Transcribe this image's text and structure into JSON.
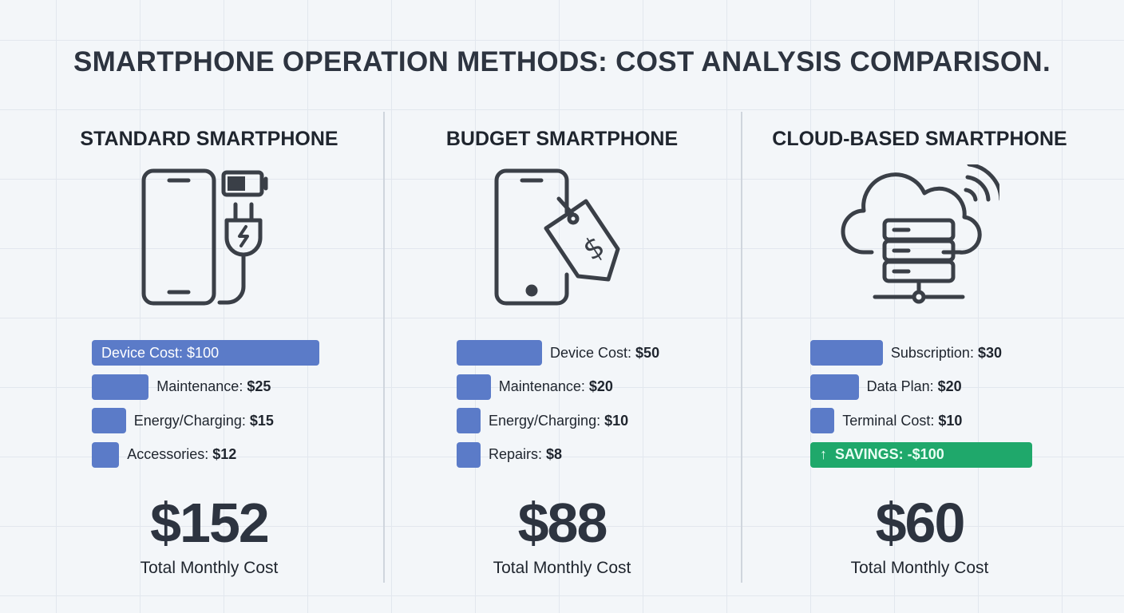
{
  "title": "SMARTPHONE OPERATION METHODS: COST ANALYSIS COMPARISON.",
  "colors": {
    "bar": "#5b7bc8",
    "savings": "#1fa86b",
    "text": "#2d3440"
  },
  "chart_data": {
    "type": "bar",
    "title": "SMARTPHONE OPERATION METHODS: COST ANALYSIS COMPARISON.",
    "panels": [
      {
        "name": "STANDARD SMARTPHONE",
        "icon": "phone-charger-battery-icon",
        "items": [
          {
            "label": "Device Cost:",
            "value_text": "$100",
            "value": 100
          },
          {
            "label": "Maintenance:",
            "value_text": "$25",
            "value": 25
          },
          {
            "label": "Energy/Charging:",
            "value_text": "$15",
            "value": 15
          },
          {
            "label": "Accessories:",
            "value_text": "$12",
            "value": 12
          }
        ],
        "total": "$152",
        "total_label": "Total Monthly Cost"
      },
      {
        "name": "BUDGET SMARTPHONE",
        "icon": "phone-price-tag-icon",
        "items": [
          {
            "label": "Device Cost:",
            "value_text": "$50",
            "value": 50
          },
          {
            "label": "Maintenance:",
            "value_text": "$20",
            "value": 20
          },
          {
            "label": "Energy/Charging:",
            "value_text": "$10",
            "value": 10
          },
          {
            "label": "Repairs:",
            "value_text": "$8",
            "value": 8
          }
        ],
        "total": "$88",
        "total_label": "Total Monthly Cost"
      },
      {
        "name": "CLOUD-BASED SMARTPHONE",
        "icon": "cloud-server-icon",
        "items": [
          {
            "label": "Subscription:",
            "value_text": "$30",
            "value": 30
          },
          {
            "label": "Data Plan:",
            "value_text": "$20",
            "value": 20
          },
          {
            "label": "Terminal Cost:",
            "value_text": "$10",
            "value": 10
          }
        ],
        "savings": "SAVINGS: -$100",
        "savings_value": -100,
        "total": "$60",
        "total_label": "Total Monthly Cost"
      }
    ]
  }
}
